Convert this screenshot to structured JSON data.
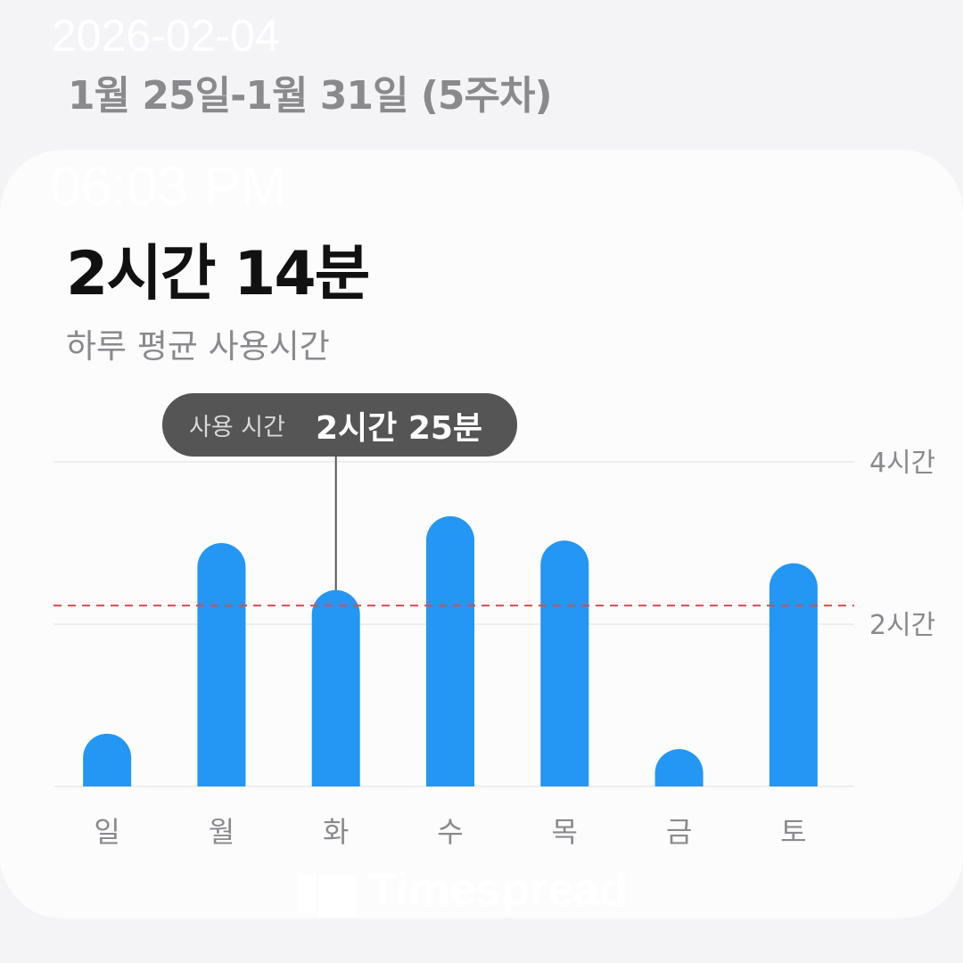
{
  "header": {
    "week_range": "1월 25일-1월 31일 (5주차)"
  },
  "summary": {
    "total": "2시간 14분",
    "label": "하루 평균 사용시간"
  },
  "tooltip": {
    "label": "사용 시간",
    "value": "2시간 25분"
  },
  "watermark": {
    "date": "2026-02-04",
    "time": "06:03 PM",
    "logo": "Timespread"
  },
  "colors": {
    "bar": "#2496f3",
    "average_line": "#e2474b",
    "tooltip_bg": "#555555"
  },
  "chart_data": {
    "type": "bar",
    "categories": [
      "일",
      "월",
      "화",
      "수",
      "목",
      "금",
      "토"
    ],
    "values": [
      0.65,
      3.0,
      2.42,
      3.33,
      3.03,
      0.46,
      2.75
    ],
    "unit": "hours",
    "ylim": [
      0,
      4
    ],
    "yticks": [
      {
        "value": 2,
        "label": "2시간"
      },
      {
        "value": 4,
        "label": "4시간"
      }
    ],
    "average": 2.23,
    "selected_index": 2,
    "grid": true
  }
}
